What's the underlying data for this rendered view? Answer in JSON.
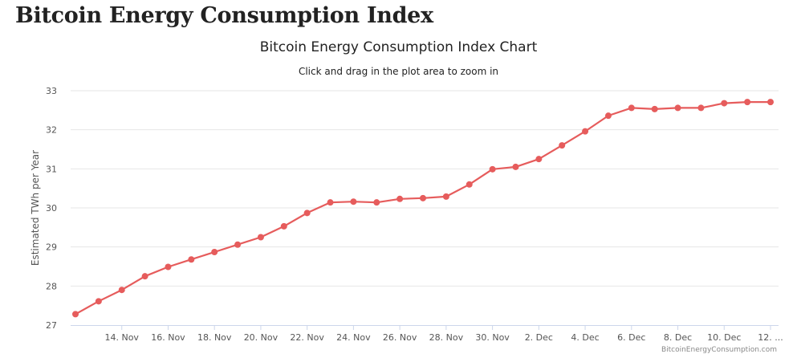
{
  "page": {
    "heading": "Bitcoin Energy Consumption Index"
  },
  "chart_data": {
    "type": "line",
    "title": "Bitcoin Energy Consumption Index Chart",
    "subtitle": "Click and drag in the plot area to zoom in",
    "xlabel": "",
    "ylabel": "Estimated TWh per Year",
    "ylim": [
      27,
      33
    ],
    "yticks": [
      27,
      28,
      29,
      30,
      31,
      32,
      33
    ],
    "x_start": "12. Nov",
    "x_end": "12. Dec",
    "xtick_labels": [
      "14. Nov",
      "16. Nov",
      "18. Nov",
      "20. Nov",
      "22. Nov",
      "24. Nov",
      "26. Nov",
      "28. Nov",
      "30. Nov",
      "2. Dec",
      "4. Dec",
      "6. Dec",
      "8. Dec",
      "10. Dec",
      "12. ..."
    ],
    "x": [
      "12. Nov",
      "13. Nov",
      "14. Nov",
      "15. Nov",
      "16. Nov",
      "17. Nov",
      "18. Nov",
      "19. Nov",
      "20. Nov",
      "21. Nov",
      "22. Nov",
      "23. Nov",
      "24. Nov",
      "25. Nov",
      "26. Nov",
      "27. Nov",
      "28. Nov",
      "29. Nov",
      "30. Nov",
      "1. Dec",
      "2. Dec",
      "3. Dec",
      "4. Dec",
      "5. Dec",
      "6. Dec",
      "7. Dec",
      "8. Dec",
      "9. Dec",
      "10. Dec",
      "11. Dec",
      "12. Dec"
    ],
    "series": [
      {
        "values": [
          27.28,
          27.61,
          27.9,
          28.25,
          28.49,
          28.68,
          28.87,
          29.06,
          29.25,
          29.53,
          29.87,
          30.14,
          30.16,
          30.14,
          30.23,
          30.25,
          30.29,
          30.6,
          30.99,
          31.05,
          31.25,
          31.6,
          31.96,
          32.36,
          32.56,
          32.53,
          32.56,
          32.56,
          32.68,
          32.71,
          32.71
        ],
        "color": "#e65c5c"
      }
    ],
    "grid": true,
    "legend": "none",
    "credits": "BitcoinEnergyConsumption.com"
  }
}
